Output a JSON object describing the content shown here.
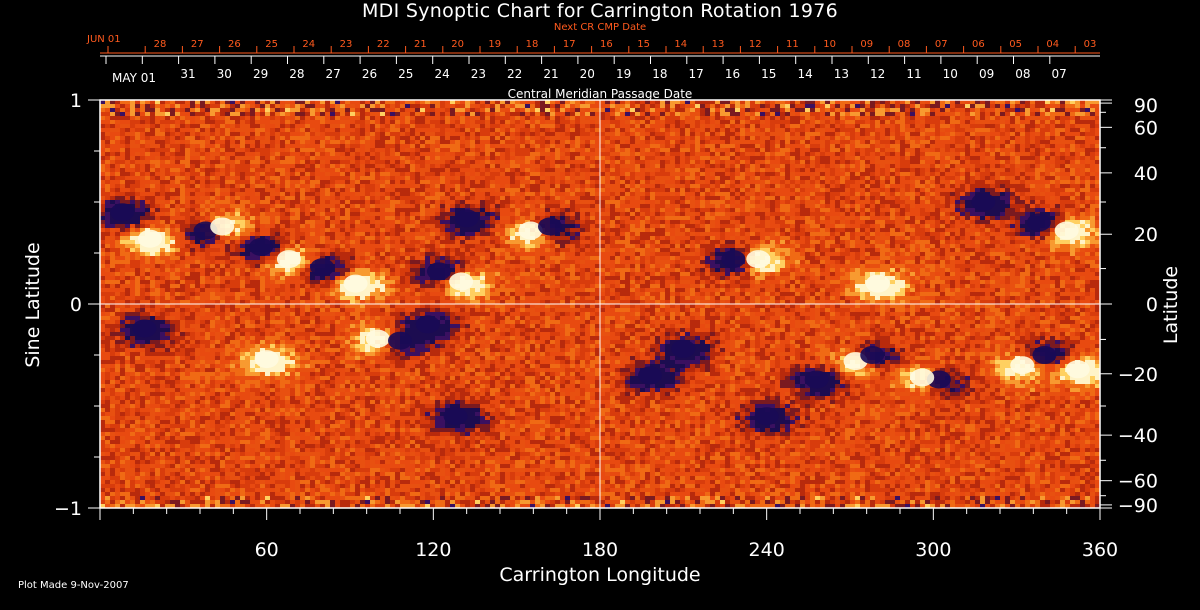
{
  "chart_data": {
    "type": "heatmap",
    "title": "MDI Synoptic Chart for Carrington Rotation 1976",
    "xlabel": "Carrington Longitude",
    "ylabel_left": "Sine Latitude",
    "ylabel_right": "Latitude",
    "xlim": [
      0,
      360
    ],
    "ylim": [
      -1,
      1
    ],
    "x_ticks": [
      "60",
      "120",
      "180",
      "240",
      "300",
      "360"
    ],
    "y_ticks_left": [
      "1",
      "0",
      "−1"
    ],
    "y_ticks_right": [
      "90",
      "60",
      "40",
      "20",
      "0",
      "−20",
      "−40",
      "−60",
      "−90"
    ],
    "y_ticks_right_values": [
      90,
      60,
      40,
      20,
      0,
      -20,
      -40,
      -60,
      -90
    ],
    "cmp_label": "Central Meridian Passage Date",
    "cmp_start_label": "MAY 01",
    "cmp_dates": [
      "31",
      "30",
      "29",
      "28",
      "27",
      "26",
      "25",
      "24",
      "23",
      "22",
      "21",
      "20",
      "19",
      "18",
      "17",
      "16",
      "15",
      "14",
      "13",
      "12",
      "11",
      "10",
      "09",
      "08",
      "07"
    ],
    "next_cmp_label": "Next CR CMP Date",
    "next_cmp_start_label": "JUN 01",
    "next_cmp_dates": [
      "28",
      "27",
      "26",
      "25",
      "24",
      "23",
      "22",
      "21",
      "20",
      "19",
      "18",
      "17",
      "16",
      "15",
      "14",
      "13",
      "12",
      "11",
      "10",
      "09",
      "08",
      "07",
      "06",
      "05",
      "04",
      "03"
    ],
    "grid": "longitude 180 and latitude 0 lines",
    "legend": "none",
    "colormap": {
      "negative": "#1a0a55",
      "background": "#e84a10",
      "positive": "#fffbe0"
    },
    "active_regions": [
      {
        "lon": 8,
        "lat": 0.45,
        "sign": -1
      },
      {
        "lon": 18,
        "lat": 0.32,
        "sign": 1
      },
      {
        "lon": 38,
        "lat": 0.36,
        "sign": -1
      },
      {
        "lon": 44,
        "lat": 0.38,
        "sign": 1
      },
      {
        "lon": 58,
        "lat": 0.28,
        "sign": -1
      },
      {
        "lon": 68,
        "lat": 0.22,
        "sign": 1
      },
      {
        "lon": 80,
        "lat": 0.18,
        "sign": -1
      },
      {
        "lon": 92,
        "lat": 0.1,
        "sign": 1
      },
      {
        "lon": 122,
        "lat": 0.16,
        "sign": -1
      },
      {
        "lon": 130,
        "lat": 0.11,
        "sign": 1
      },
      {
        "lon": 132,
        "lat": 0.42,
        "sign": -1
      },
      {
        "lon": 155,
        "lat": 0.36,
        "sign": 1
      },
      {
        "lon": 162,
        "lat": 0.38,
        "sign": -1
      },
      {
        "lon": 228,
        "lat": 0.22,
        "sign": -1
      },
      {
        "lon": 237,
        "lat": 0.22,
        "sign": 1
      },
      {
        "lon": 280,
        "lat": 0.1,
        "sign": 1
      },
      {
        "lon": 318,
        "lat": 0.5,
        "sign": -1
      },
      {
        "lon": 338,
        "lat": 0.4,
        "sign": -1
      },
      {
        "lon": 348,
        "lat": 0.36,
        "sign": 1
      },
      {
        "lon": 60,
        "lat": -0.27,
        "sign": 1
      },
      {
        "lon": 100,
        "lat": -0.17,
        "sign": 1
      },
      {
        "lon": 108,
        "lat": -0.18,
        "sign": -1
      },
      {
        "lon": 118,
        "lat": -0.1,
        "sign": -1
      },
      {
        "lon": 128,
        "lat": -0.55,
        "sign": -1
      },
      {
        "lon": 198,
        "lat": -0.35,
        "sign": -1
      },
      {
        "lon": 210,
        "lat": -0.22,
        "sign": -1
      },
      {
        "lon": 258,
        "lat": -0.37,
        "sign": -1
      },
      {
        "lon": 272,
        "lat": -0.28,
        "sign": 1
      },
      {
        "lon": 278,
        "lat": -0.25,
        "sign": -1
      },
      {
        "lon": 302,
        "lat": -0.37,
        "sign": -1
      },
      {
        "lon": 296,
        "lat": -0.36,
        "sign": 1
      },
      {
        "lon": 332,
        "lat": -0.3,
        "sign": 1
      },
      {
        "lon": 340,
        "lat": -0.25,
        "sign": -1
      },
      {
        "lon": 352,
        "lat": -0.32,
        "sign": 1
      },
      {
        "lon": 16,
        "lat": -0.12,
        "sign": -1
      },
      {
        "lon": 240,
        "lat": -0.55,
        "sign": -1
      }
    ]
  },
  "footer": {
    "plot_made": "Plot Made  9-Nov-2007"
  }
}
